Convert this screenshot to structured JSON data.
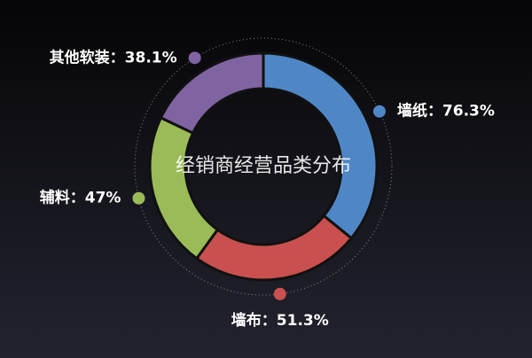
{
  "chart_data": {
    "type": "donut",
    "title": "经销商经营品类分布",
    "categories": [
      "墙纸",
      "墙布",
      "辅料",
      "其他软装"
    ],
    "values": [
      76.3,
      51.3,
      47,
      38.1
    ],
    "value_labels": [
      "：76.3%",
      "：51.3%",
      "：47%",
      "：38.1%"
    ],
    "colors": [
      "#4f86c6",
      "#c9504f",
      "#9bbb59",
      "#8064a2"
    ]
  }
}
